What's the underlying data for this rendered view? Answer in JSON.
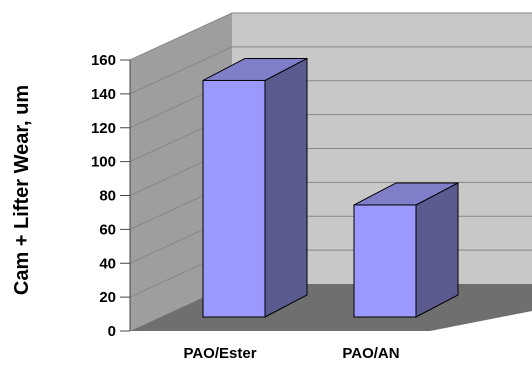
{
  "chart_data": {
    "type": "bar",
    "categories": [
      "PAO/Ester",
      "PAO/AN"
    ],
    "values": [
      152,
      72
    ],
    "title": "",
    "xlabel": "",
    "ylabel": "Cam + Lifter Wear, um",
    "ylim": [
      0,
      160
    ],
    "yticks": [
      "0",
      "20",
      "40",
      "60",
      "80",
      "100",
      "120",
      "140",
      "160"
    ],
    "grid": true,
    "legend": "none",
    "style": "3d-bar"
  },
  "colors": {
    "bar_front": "#9999ff",
    "bar_side": "#5b5b8f",
    "bar_top": "#7f7fc9",
    "wall_back": "#c8c8c8",
    "wall_side": "#9e9e9e",
    "floor": "#6f6f6f",
    "grid": "#888888"
  }
}
